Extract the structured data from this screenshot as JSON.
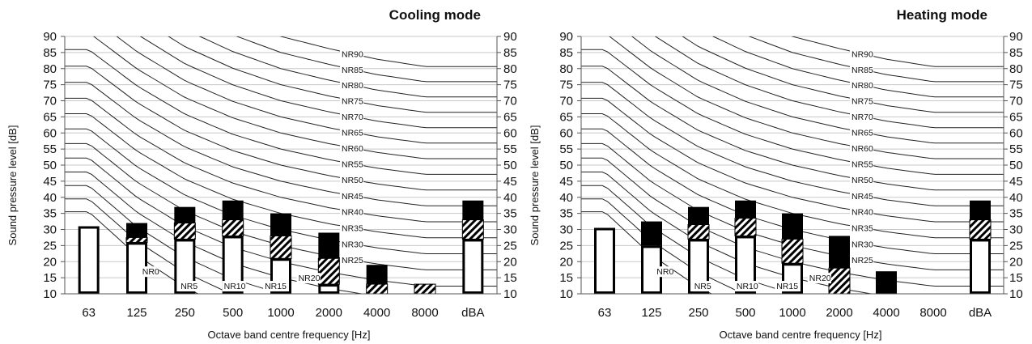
{
  "chart_data": [
    {
      "type": "bar",
      "title": "Cooling mode",
      "xlabel": "Octave band centre frequency [Hz]",
      "ylabel": "Sound pressure level [dB]",
      "ylim": [
        10,
        90
      ],
      "yticks": [
        10,
        15,
        20,
        25,
        30,
        35,
        40,
        45,
        50,
        55,
        60,
        65,
        70,
        75,
        80,
        85,
        90
      ],
      "categories": [
        "63",
        "125",
        "250",
        "500",
        "1000",
        "2000",
        "4000",
        "8000",
        "dBA"
      ],
      "grid": true,
      "series": [
        {
          "values": [
            31,
            26,
            27,
            28,
            21,
            13,
            10,
            10,
            27
          ]
        },
        {
          "values": [
            31,
            27.5,
            32,
            33,
            28,
            21,
            13,
            13,
            33
          ]
        },
        {
          "values": [
            31,
            32,
            37,
            39,
            35,
            29,
            19,
            13,
            39
          ]
        }
      ],
      "nr_curves": [
        "NR0",
        "NR5",
        "NR10",
        "NR15",
        "NR20",
        "NR25",
        "NR30",
        "NR35",
        "NR40",
        "NR45",
        "NR50",
        "NR55",
        "NR60",
        "NR65",
        "NR70",
        "NR75",
        "NR80",
        "NR85",
        "NR90"
      ]
    },
    {
      "type": "bar",
      "title": "Heating mode",
      "xlabel": "Octave band centre frequency [Hz]",
      "ylabel": "Sound pressure level [dB]",
      "ylim": [
        10,
        90
      ],
      "yticks": [
        10,
        15,
        20,
        25,
        30,
        35,
        40,
        45,
        50,
        55,
        60,
        65,
        70,
        75,
        80,
        85,
        90
      ],
      "categories": [
        "63",
        "125",
        "250",
        "500",
        "1000",
        "2000",
        "4000",
        "8000",
        "dBA"
      ],
      "grid": true,
      "series": [
        {
          "values": [
            30.5,
            25,
            27,
            28,
            19.5,
            10,
            10,
            10,
            27
          ]
        },
        {
          "values": [
            30.5,
            25,
            31.5,
            33.5,
            27,
            18,
            10,
            10,
            33
          ]
        },
        {
          "values": [
            30.5,
            32.5,
            37,
            39,
            35,
            28,
            17,
            10,
            39
          ]
        }
      ],
      "nr_curves": [
        "NR0",
        "NR5",
        "NR10",
        "NR15",
        "NR20",
        "NR25",
        "NR30",
        "NR35",
        "NR40",
        "NR45",
        "NR50",
        "NR55",
        "NR60",
        "NR65",
        "NR70",
        "NR75",
        "NR80",
        "NR85",
        "NR90"
      ]
    }
  ]
}
